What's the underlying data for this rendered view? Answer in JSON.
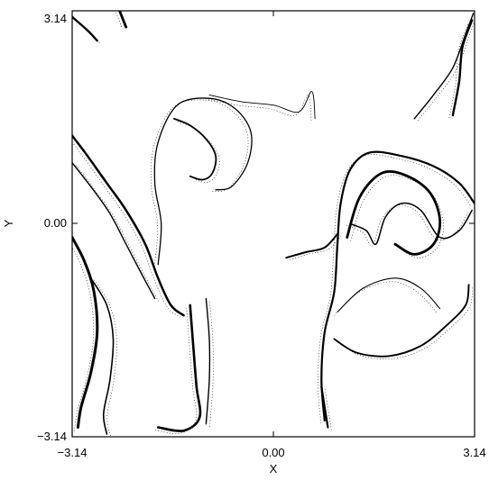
{
  "chart_data": {
    "type": "scatter",
    "title": "",
    "xlabel": "X",
    "ylabel": "Y",
    "xlim": [
      -3.14,
      3.14
    ],
    "ylim": [
      -3.14,
      3.14
    ],
    "x_ticks": [
      -3.14,
      0.0,
      3.14
    ],
    "y_ticks": [
      -3.14,
      0.0,
      3.14
    ],
    "x_tick_labels": [
      "−3.14",
      "0.00",
      "3.14"
    ],
    "y_tick_labels": [
      "−3.14",
      "0.00",
      "3.14"
    ],
    "grid": false,
    "legend": "none",
    "colors": {
      "ink": "#000000",
      "background": "#ffffff"
    },
    "series": [
      {
        "description_key": "filament-left-diagonal",
        "points": [
          [
            -3.14,
            1.3
          ],
          [
            -2.9,
            1.0
          ],
          [
            -2.6,
            0.6
          ],
          [
            -2.3,
            0.2
          ],
          [
            -2.0,
            -0.3
          ],
          [
            -1.8,
            -0.8
          ],
          [
            -1.6,
            -1.2
          ],
          [
            -1.4,
            -1.35
          ]
        ],
        "width": 2.5
      },
      {
        "description_key": "filament-left-inner",
        "points": [
          [
            -3.14,
            0.9
          ],
          [
            -2.85,
            0.55
          ],
          [
            -2.55,
            0.15
          ],
          [
            -2.3,
            -0.3
          ],
          [
            -2.05,
            -0.75
          ],
          [
            -1.85,
            -1.1
          ]
        ],
        "width": 1.4
      },
      {
        "description_key": "filament-left-edge",
        "points": [
          [
            -3.14,
            -0.2
          ],
          [
            -2.95,
            -0.55
          ],
          [
            -2.8,
            -1.0
          ],
          [
            -2.75,
            -1.6
          ],
          [
            -2.85,
            -2.2
          ],
          [
            -3.0,
            -2.7
          ],
          [
            -3.05,
            -3.0
          ]
        ],
        "width": 3.0
      },
      {
        "description_key": "filament-left-edge-2",
        "points": [
          [
            -2.85,
            -0.8
          ],
          [
            -2.6,
            -1.2
          ],
          [
            -2.5,
            -1.7
          ],
          [
            -2.55,
            -2.3
          ],
          [
            -2.65,
            -2.8
          ],
          [
            -2.6,
            -3.1
          ]
        ],
        "width": 1.6
      },
      {
        "description_key": "filament-bottom-spike",
        "points": [
          [
            -1.3,
            -1.2
          ],
          [
            -1.25,
            -1.8
          ],
          [
            -1.2,
            -2.4
          ],
          [
            -1.15,
            -2.85
          ],
          [
            -1.4,
            -3.05
          ],
          [
            -1.8,
            -3.0
          ]
        ],
        "width": 2.6
      },
      {
        "description_key": "filament-bottom-spike-2",
        "points": [
          [
            -1.05,
            -1.1
          ],
          [
            -1.0,
            -1.7
          ],
          [
            -1.0,
            -2.3
          ],
          [
            -1.05,
            -2.95
          ]
        ],
        "width": 1.4
      },
      {
        "description_key": "hook-upper-centre",
        "points": [
          [
            -1.8,
            -0.6
          ],
          [
            -1.75,
            0.0
          ],
          [
            -1.85,
            0.6
          ],
          [
            -1.8,
            1.2
          ],
          [
            -1.5,
            1.75
          ],
          [
            -1.0,
            1.85
          ],
          [
            -0.6,
            1.7
          ],
          [
            -0.35,
            1.35
          ],
          [
            -0.4,
            0.9
          ],
          [
            -0.65,
            0.55
          ],
          [
            -0.9,
            0.5
          ]
        ],
        "width": 1.3
      },
      {
        "description_key": "hook-upper-centre-inner",
        "points": [
          [
            -1.55,
            1.55
          ],
          [
            -1.3,
            1.45
          ],
          [
            -1.05,
            1.25
          ],
          [
            -0.9,
            1.0
          ],
          [
            -0.95,
            0.75
          ],
          [
            -1.1,
            0.65
          ],
          [
            -1.3,
            0.7
          ]
        ],
        "width": 1.8
      },
      {
        "description_key": "hook-upper-tail",
        "points": [
          [
            -1.0,
            1.9
          ],
          [
            -0.5,
            1.8
          ],
          [
            0.0,
            1.75
          ],
          [
            0.4,
            1.65
          ],
          [
            0.6,
            1.95
          ],
          [
            0.65,
            1.55
          ]
        ],
        "width": 0.9
      },
      {
        "description_key": "centre-dash",
        "points": [
          [
            0.2,
            -0.5
          ],
          [
            0.5,
            -0.42
          ],
          [
            0.8,
            -0.35
          ],
          [
            1.0,
            -0.15
          ]
        ],
        "width": 2.0
      },
      {
        "description_key": "right-swirl-outer",
        "points": [
          [
            0.8,
            -2.9
          ],
          [
            0.75,
            -2.3
          ],
          [
            0.8,
            -1.6
          ],
          [
            0.95,
            -1.0
          ],
          [
            1.0,
            -0.3
          ],
          [
            1.05,
            0.3
          ],
          [
            1.2,
            0.8
          ],
          [
            1.5,
            1.05
          ],
          [
            2.0,
            1.0
          ],
          [
            2.5,
            0.85
          ],
          [
            2.9,
            0.6
          ],
          [
            3.14,
            0.3
          ]
        ],
        "width": 2.2
      },
      {
        "description_key": "right-swirl-inner",
        "points": [
          [
            1.15,
            -0.2
          ],
          [
            1.35,
            0.4
          ],
          [
            1.7,
            0.75
          ],
          [
            2.1,
            0.7
          ],
          [
            2.45,
            0.45
          ],
          [
            2.6,
            0.05
          ],
          [
            2.5,
            -0.3
          ],
          [
            2.2,
            -0.45
          ],
          [
            1.9,
            -0.3
          ]
        ],
        "width": 2.8
      },
      {
        "description_key": "right-swirl-mid",
        "points": [
          [
            1.2,
            0.0
          ],
          [
            1.45,
            -0.1
          ],
          [
            1.6,
            -0.3
          ],
          [
            1.75,
            0.1
          ],
          [
            2.0,
            0.3
          ],
          [
            2.3,
            0.2
          ],
          [
            2.6,
            -0.2
          ],
          [
            2.9,
            -0.1
          ],
          [
            3.1,
            0.2
          ]
        ],
        "width": 1.5
      },
      {
        "description_key": "right-lower-loop",
        "points": [
          [
            0.95,
            -1.7
          ],
          [
            1.3,
            -1.9
          ],
          [
            1.8,
            -1.95
          ],
          [
            2.3,
            -1.8
          ],
          [
            2.7,
            -1.5
          ],
          [
            3.0,
            -1.2
          ],
          [
            3.05,
            -0.9
          ]
        ],
        "width": 1.9
      },
      {
        "description_key": "right-lower-loop-2",
        "points": [
          [
            1.0,
            -1.3
          ],
          [
            1.4,
            -0.95
          ],
          [
            1.9,
            -0.8
          ],
          [
            2.3,
            -0.95
          ],
          [
            2.6,
            -1.25
          ]
        ],
        "width": 1.1
      },
      {
        "description_key": "right-top-corner",
        "points": [
          [
            2.2,
            1.55
          ],
          [
            2.5,
            1.9
          ],
          [
            2.8,
            2.3
          ],
          [
            3.0,
            2.8
          ],
          [
            3.12,
            3.1
          ]
        ],
        "width": 1.4
      },
      {
        "description_key": "right-top-corner-2",
        "points": [
          [
            2.8,
            1.6
          ],
          [
            2.9,
            2.1
          ],
          [
            2.95,
            2.6
          ],
          [
            3.1,
            3.0
          ]
        ],
        "width": 2.4
      },
      {
        "description_key": "top-left-corner",
        "points": [
          [
            -3.14,
            3.05
          ],
          [
            -2.9,
            2.85
          ],
          [
            -2.75,
            2.7
          ]
        ],
        "width": 2.4
      },
      {
        "description_key": "top-left-corner-2",
        "points": [
          [
            -2.4,
            3.14
          ],
          [
            -2.3,
            2.9
          ]
        ],
        "width": 2.8
      },
      {
        "description_key": "right-bottom-vertical",
        "points": [
          [
            0.75,
            -2.4
          ],
          [
            0.8,
            -2.7
          ],
          [
            0.85,
            -3.0
          ]
        ],
        "width": 2.2
      }
    ]
  }
}
